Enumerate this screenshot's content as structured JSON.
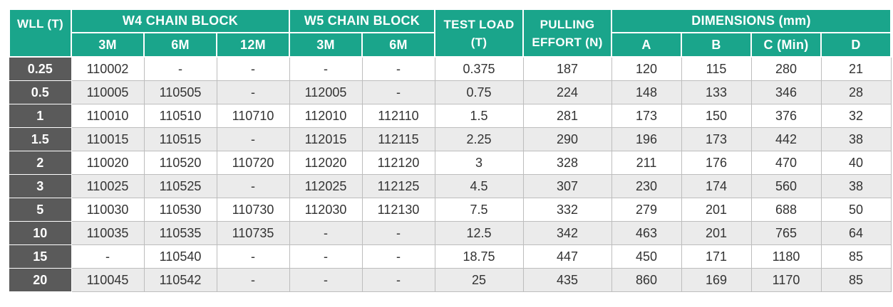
{
  "headers": {
    "wll": "WLL (T)",
    "w4": "W4 CHAIN BLOCK",
    "w5": "W5 CHAIN BLOCK",
    "test_load": "TEST LOAD (T)",
    "pulling_effort": "PULLING EFFORT (N)",
    "dimensions": "DIMENSIONS (mm)",
    "w4_sub": [
      "3M",
      "6M",
      "12M"
    ],
    "w5_sub": [
      "3M",
      "6M"
    ],
    "dim_sub": [
      "A",
      "B",
      "C (Min)",
      "D"
    ]
  },
  "rows": [
    [
      "0.25",
      "110002",
      "-",
      "-",
      "-",
      "-",
      "0.375",
      "187",
      "120",
      "115",
      "280",
      "21"
    ],
    [
      "0.5",
      "110005",
      "110505",
      "-",
      "112005",
      "-",
      "0.75",
      "224",
      "148",
      "133",
      "346",
      "28"
    ],
    [
      "1",
      "110010",
      "110510",
      "110710",
      "112010",
      "112110",
      "1.5",
      "281",
      "173",
      "150",
      "376",
      "32"
    ],
    [
      "1.5",
      "110015",
      "110515",
      "-",
      "112015",
      "112115",
      "2.25",
      "290",
      "196",
      "173",
      "442",
      "38"
    ],
    [
      "2",
      "110020",
      "110520",
      "110720",
      "112020",
      "112120",
      "3",
      "328",
      "211",
      "176",
      "470",
      "40"
    ],
    [
      "3",
      "110025",
      "110525",
      "-",
      "112025",
      "112125",
      "4.5",
      "307",
      "230",
      "174",
      "560",
      "38"
    ],
    [
      "5",
      "110030",
      "110530",
      "110730",
      "112030",
      "112130",
      "7.5",
      "332",
      "279",
      "201",
      "688",
      "50"
    ],
    [
      "10",
      "110035",
      "110535",
      "110735",
      "-",
      "-",
      "12.5",
      "342",
      "463",
      "201",
      "765",
      "64"
    ],
    [
      "15",
      "-",
      "110540",
      "-",
      "-",
      "-",
      "18.75",
      "447",
      "450",
      "171",
      "1180",
      "85"
    ],
    [
      "20",
      "110045",
      "110542",
      "-",
      "-",
      "-",
      "25",
      "435",
      "860",
      "169",
      "1170",
      "85"
    ]
  ],
  "colors": {
    "header_bg": "#1aa58b",
    "lead_col_bg": "#5a5a5a",
    "alt_row_bg": "#ebebeb",
    "text": "#333333"
  }
}
